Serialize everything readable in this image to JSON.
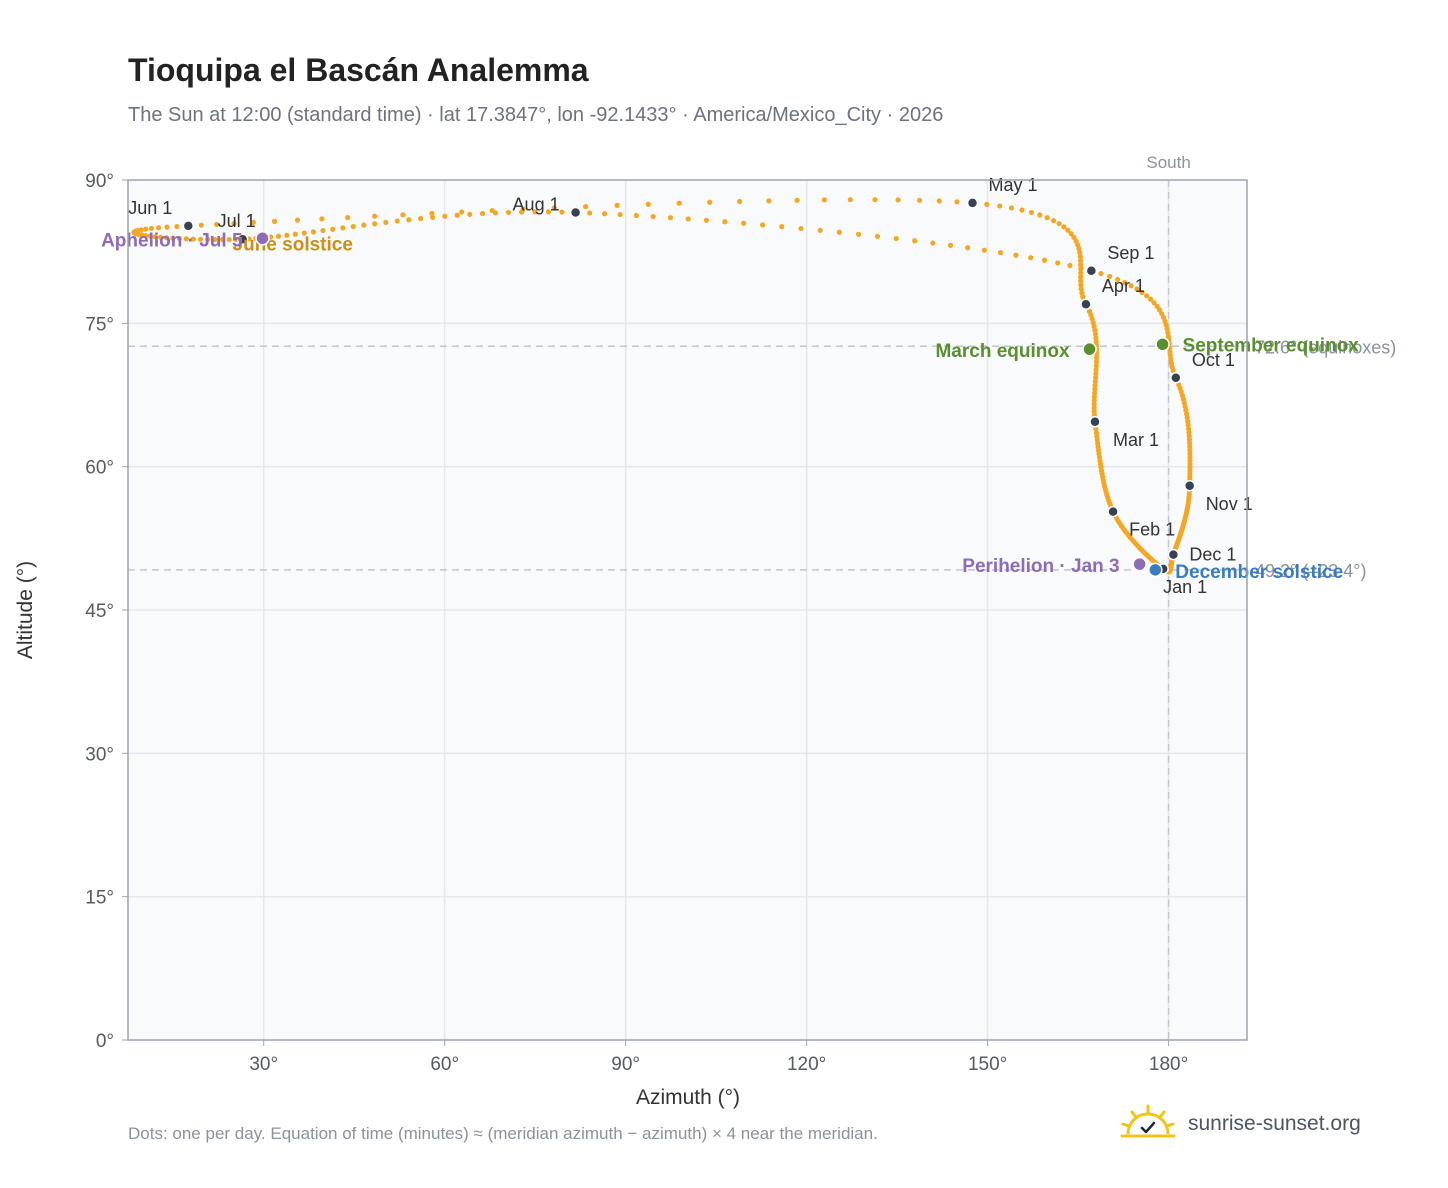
{
  "title": "Tioquipa el Bascán Analemma",
  "subtitle": "The Sun at 12:00 (standard time) · lat 17.3847°, lon -92.1433° · America/Mexico_City · 2026",
  "footnote": "Dots: one per day. Equation of time (minutes) ≈ (meridian azimuth − azimuth) × 4 near the meridian.",
  "brand": {
    "name": "sunrise-sunset.org",
    "icon": "sun-logo-icon"
  },
  "colors": {
    "path": "#f5a623",
    "month_marker": "#374151",
    "equinox": "#5a8f2e",
    "solstice_june": "#c8901a",
    "solstice_december": "#3b7bbf",
    "apsis": "#8e6bb8",
    "grid": "#e5e7eb",
    "plot_bg": "#f8fafc",
    "reference_line": "#c0c7cf"
  },
  "chart_data": {
    "type": "scatter",
    "title": "Tioquipa el Bascán Analemma",
    "xlabel": "Azimuth (°)",
    "ylabel": "Altitude (°)",
    "xlim": [
      7.5,
      193
    ],
    "ylim": [
      0,
      90
    ],
    "x_ticks": [
      30,
      60,
      90,
      120,
      150,
      180
    ],
    "y_ticks": [
      0,
      15,
      30,
      45,
      60,
      75,
      90
    ],
    "x_tick_labels": [
      "30°",
      "60°",
      "90°",
      "120°",
      "150°",
      "180°"
    ],
    "y_tick_labels": [
      "0°",
      "15°",
      "30°",
      "45°",
      "60°",
      "75°",
      "90°"
    ],
    "grid": true,
    "meridian": {
      "azimuth": 180,
      "label": "South"
    },
    "reference_lines": [
      {
        "altitude": 72.6,
        "label": "72.6° (equinoxes)"
      },
      {
        "altitude": 49.2,
        "label": "49.2° (–23.4°)"
      }
    ],
    "month_markers": [
      {
        "label": "Jan 1",
        "az": 179.1,
        "alt": 49.3
      },
      {
        "label": "Feb 1",
        "az": 170.8,
        "alt": 55.3
      },
      {
        "label": "Mar 1",
        "az": 167.8,
        "alt": 64.7
      },
      {
        "label": "Apr 1",
        "az": 166.3,
        "alt": 77.0
      },
      {
        "label": "May 1",
        "az": 147.5,
        "alt": 87.6
      },
      {
        "label": "Jun 1",
        "az": 17.5,
        "alt": 85.2
      },
      {
        "label": "Jul 1",
        "az": 26.5,
        "alt": 83.8
      },
      {
        "label": "Aug 1",
        "az": 81.7,
        "alt": 86.6
      },
      {
        "label": "Sep 1",
        "az": 167.2,
        "alt": 80.5
      },
      {
        "label": "Oct 1",
        "az": 181.2,
        "alt": 69.3
      },
      {
        "label": "Nov 1",
        "az": 183.5,
        "alt": 58.0
      },
      {
        "label": "Dec 1",
        "az": 180.8,
        "alt": 50.8
      }
    ],
    "events": [
      {
        "label": "March equinox",
        "az": 166.9,
        "alt": 72.3,
        "kind": "equinox"
      },
      {
        "label": "September equinox",
        "az": 179.0,
        "alt": 72.8,
        "kind": "equinox"
      },
      {
        "label": "June solstice",
        "az": 29.8,
        "alt": 83.9,
        "kind": "solstice_june"
      },
      {
        "label": "December solstice",
        "az": 177.8,
        "alt": 49.2,
        "kind": "solstice_december"
      },
      {
        "label": "Perihelion · Jan 3",
        "az": 175.2,
        "alt": 49.8,
        "kind": "apsis"
      },
      {
        "label": "Aphelion · Jul 5",
        "az": 29.8,
        "alt": 83.9,
        "kind": "apsis"
      }
    ]
  }
}
